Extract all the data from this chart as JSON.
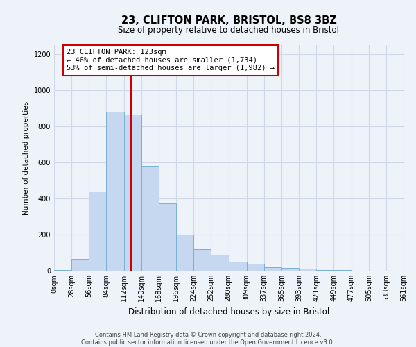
{
  "title1": "23, CLIFTON PARK, BRISTOL, BS8 3BZ",
  "title2": "Size of property relative to detached houses in Bristol",
  "xlabel": "Distribution of detached houses by size in Bristol",
  "ylabel": "Number of detached properties",
  "annotation_title": "23 CLIFTON PARK: 123sqm",
  "annotation_line1": "← 46% of detached houses are smaller (1,734)",
  "annotation_line2": "53% of semi-detached houses are larger (1,982) →",
  "property_size_sqm": 123,
  "bins": [
    0,
    28,
    56,
    84,
    112,
    140,
    168,
    196,
    224,
    252,
    280,
    309,
    337,
    365,
    393,
    421,
    449,
    477,
    505,
    533,
    561
  ],
  "bin_labels": [
    "0sqm",
    "28sqm",
    "56sqm",
    "84sqm",
    "112sqm",
    "140sqm",
    "168sqm",
    "196sqm",
    "224sqm",
    "252sqm",
    "280sqm",
    "309sqm",
    "337sqm",
    "365sqm",
    "393sqm",
    "421sqm",
    "449sqm",
    "477sqm",
    "505sqm",
    "533sqm",
    "561sqm"
  ],
  "bar_heights": [
    5,
    65,
    440,
    880,
    865,
    580,
    375,
    200,
    120,
    90,
    50,
    40,
    20,
    15,
    10,
    3,
    2,
    1,
    1,
    1
  ],
  "bar_color": "#c5d8f0",
  "bar_edge_color": "#7aafd4",
  "red_line_color": "#cc0000",
  "annotation_box_color": "#ffffff",
  "annotation_box_edge_color": "#cc0000",
  "grid_color": "#d0d8e8",
  "background_color": "#eef2f9",
  "ylim": [
    0,
    1250
  ],
  "yticks": [
    0,
    200,
    400,
    600,
    800,
    1000,
    1200
  ],
  "footer1": "Contains HM Land Registry data © Crown copyright and database right 2024.",
  "footer2": "Contains public sector information licensed under the Open Government Licence v3.0.",
  "title1_fontsize": 10.5,
  "title2_fontsize": 8.5,
  "ylabel_fontsize": 7.5,
  "xlabel_fontsize": 8.5,
  "tick_fontsize": 7,
  "footer_fontsize": 6.0,
  "annot_fontsize": 7.5
}
